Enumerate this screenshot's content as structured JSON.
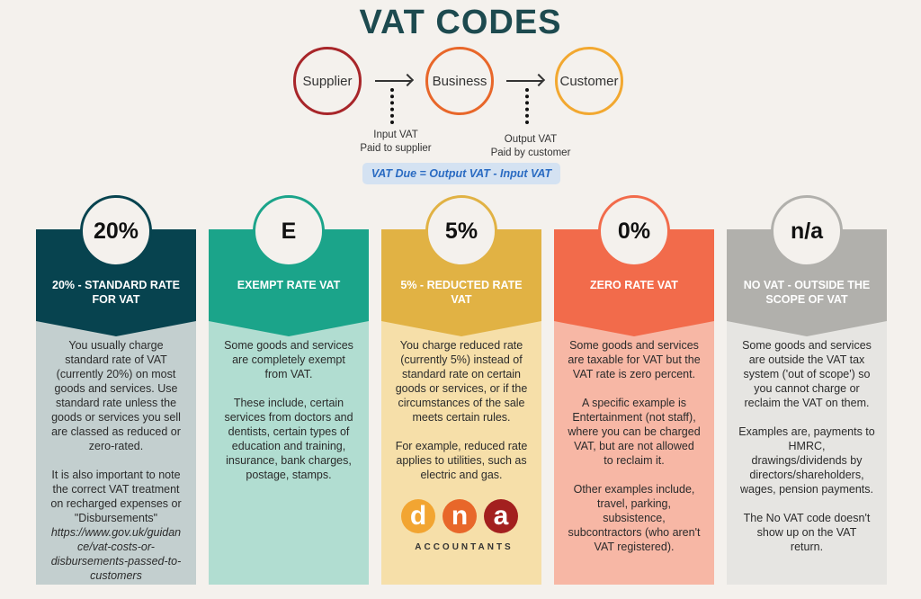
{
  "title": "VAT CODES",
  "flow": {
    "nodes": [
      {
        "label": "Supplier",
        "color": "#a8262a"
      },
      {
        "label": "Business",
        "color": "#e8672a"
      },
      {
        "label": "Customer",
        "color": "#f2a830"
      }
    ],
    "input_label": "Input VAT\nPaid to supplier",
    "output_label": "Output VAT\nPaid by customer",
    "formula": "VAT Due = Output VAT - Input VAT"
  },
  "columns": [
    {
      "badge": "20%",
      "title": "20% - STANDARD RATE\nFOR VAT",
      "header_color": "#07434f",
      "body_color": "#c3cfcf",
      "paragraphs": [
        "You usually charge\nstandard rate of VAT\n(currently 20%) on most\ngoods and services. Use\nstandard rate unless the\ngoods or services you sell\nare classed as reduced or\nzero-rated.",
        "It is also important to note\nthe correct VAT treatment\non recharged expenses or\n\"Disbursements\""
      ],
      "url": "https://www.gov.uk/guidan\nce/vat-costs-or-\ndisbursements-passed-to-\ncustomers"
    },
    {
      "badge": "E",
      "title": "EXEMPT RATE VAT",
      "header_color": "#1ba48a",
      "body_color": "#b1ddd1",
      "paragraphs": [
        "Some goods and services\nare completely exempt\nfrom VAT.",
        "These include, certain\nservices from doctors and\ndentists, certain types of\neducation and training,\ninsurance, bank charges,\npostage, stamps."
      ]
    },
    {
      "badge": "5%",
      "title": "5% - REDUCTED RATE\nVAT",
      "header_color": "#e1b244",
      "body_color": "#f6dfa9",
      "paragraphs": [
        "You charge reduced rate\n(currently 5%) instead of\nstandard rate on certain\ngoods or services, or if the\ncircumstances of the sale\nmeets certain rules.",
        "For example, reduced rate\napplies to utilities, such as\nelectric and gas."
      ]
    },
    {
      "badge": "0%",
      "title": "ZERO RATE VAT",
      "header_color": "#f26b4b",
      "body_color": "#f7b7a5",
      "paragraphs": [
        "Some goods and services\nare taxable for VAT but the\nVAT rate is zero percent.",
        "A specific example is\nEntertainment (not staff),\nwhere you can be charged\nVAT, but are not allowed\nto reclaim it.",
        "Other examples include,\ntravel, parking,\nsubsistence,\nsubcontractors (who aren't\nVAT registered)."
      ]
    },
    {
      "badge": "n/a",
      "title": "NO VAT - OUTSIDE THE\nSCOPE OF VAT",
      "header_color": "#b1b0ac",
      "body_color": "#e6e5e2",
      "paragraphs": [
        "Some goods and services\nare outside the VAT tax\nsystem ('out of scope') so\nyou cannot charge or\nreclaim the VAT on them.",
        "Examples are, payments to\nHMRC,\ndrawings/dividends by\ndirectors/shareholders,\nwages, pension payments.",
        "The No VAT code doesn't\nshow up on the VAT\nreturn."
      ]
    }
  ],
  "logo": {
    "letters": [
      "d",
      "n",
      "a"
    ],
    "colors": [
      "#f2a532",
      "#e8672a",
      "#a3201f"
    ],
    "word": "ACCOUNTANTS"
  }
}
